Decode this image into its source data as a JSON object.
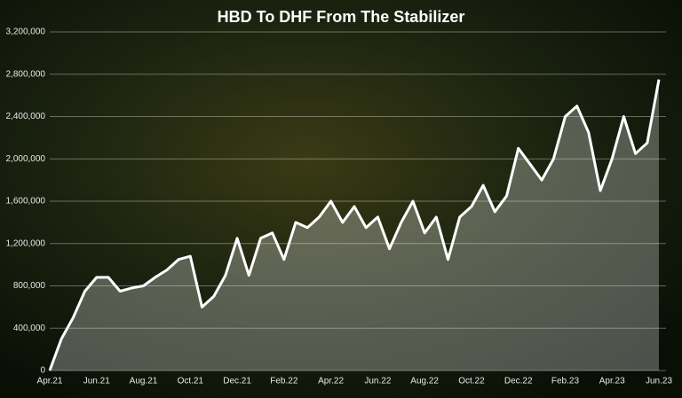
{
  "chart_data": {
    "type": "area",
    "title": "HBD To DHF From The Stabilizer",
    "categories": [
      "Apr.21",
      null,
      null,
      null,
      "Jun.21",
      null,
      null,
      null,
      "Aug.21",
      null,
      null,
      null,
      "Oct.21",
      null,
      null,
      null,
      "Dec.21",
      null,
      null,
      null,
      "Feb.22",
      null,
      null,
      null,
      "Apr.22",
      null,
      null,
      null,
      "Jun.22",
      null,
      null,
      null,
      "Aug.22",
      null,
      null,
      null,
      "Oct.22",
      null,
      null,
      null,
      "Dec.22",
      null,
      null,
      null,
      "Feb.23",
      null,
      null,
      null,
      "Apr.23",
      null,
      null,
      null,
      "Jun.23"
    ],
    "values": [
      0,
      300000,
      500000,
      750000,
      880000,
      880000,
      750000,
      780000,
      800000,
      880000,
      950000,
      1050000,
      1080000,
      600000,
      700000,
      900000,
      1250000,
      900000,
      1250000,
      1300000,
      1050000,
      1400000,
      1350000,
      1450000,
      1600000,
      1400000,
      1550000,
      1350000,
      1450000,
      1150000,
      1400000,
      1600000,
      1300000,
      1450000,
      1050000,
      1450000,
      1550000,
      1750000,
      1500000,
      1650000,
      2100000,
      1950000,
      1800000,
      2000000,
      2400000,
      2500000,
      2250000,
      1700000,
      2000000,
      2400000,
      2050000,
      2150000,
      2750000
    ],
    "color": "#ffffff",
    "ylim": [
      0,
      3200000
    ],
    "yticks": [
      0,
      {
        "value": 400000,
        "label": "400,000"
      },
      {
        "value": 800000,
        "label": "800,000"
      },
      {
        "value": 1200000,
        "label": "1,200,000"
      },
      {
        "value": 1600000,
        "label": "1,600,000"
      },
      {
        "value": 2000000,
        "label": "2,000,000"
      },
      {
        "value": 2400000,
        "label": "2,400,000"
      },
      {
        "value": 2800000,
        "label": "2,800,000"
      },
      {
        "value": 3200000,
        "label": "3,200,000"
      }
    ],
    "grid": true
  }
}
